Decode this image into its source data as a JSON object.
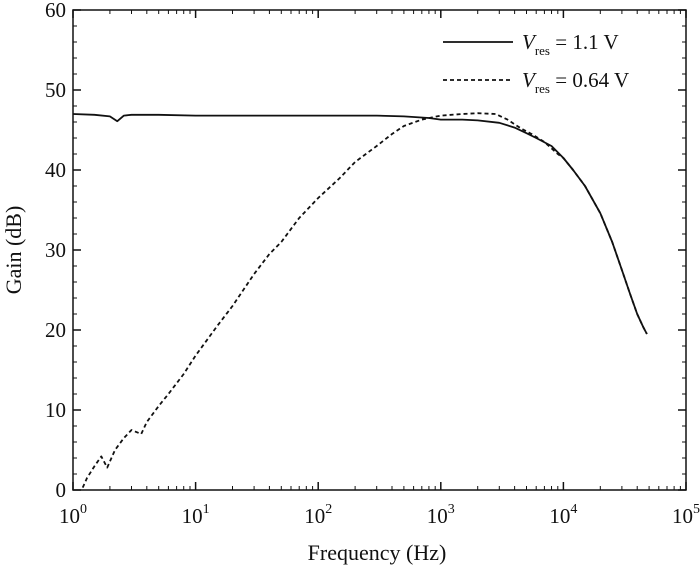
{
  "chart_data": {
    "type": "line",
    "xlabel": "Frequency (Hz)",
    "ylabel": "Gain (dB)",
    "x_scale": "log",
    "xlim": [
      1,
      100000
    ],
    "ylim": [
      0,
      60
    ],
    "grid": false,
    "legend_position": "top-right",
    "x_ticks": [
      {
        "value": 1,
        "base": "10",
        "exp": "0"
      },
      {
        "value": 10,
        "base": "10",
        "exp": "1"
      },
      {
        "value": 100,
        "base": "10",
        "exp": "2"
      },
      {
        "value": 1000,
        "base": "10",
        "exp": "3"
      },
      {
        "value": 10000,
        "base": "10",
        "exp": "4"
      },
      {
        "value": 100000,
        "base": "10",
        "exp": "5"
      }
    ],
    "y_ticks": [
      0,
      10,
      20,
      30,
      40,
      50,
      60
    ],
    "series": [
      {
        "name": "V_res = 1.1 V",
        "legend": {
          "symbol": "V",
          "subscript": "res",
          "value": " = 1.1 V"
        },
        "style": "solid",
        "color": "#111111",
        "points": [
          [
            1,
            47
          ],
          [
            1.5,
            46.9
          ],
          [
            2,
            46.7
          ],
          [
            2.3,
            46.1
          ],
          [
            2.6,
            46.8
          ],
          [
            3,
            46.9
          ],
          [
            5,
            46.9
          ],
          [
            10,
            46.8
          ],
          [
            30,
            46.8
          ],
          [
            100,
            46.8
          ],
          [
            300,
            46.8
          ],
          [
            500,
            46.7
          ],
          [
            800,
            46.5
          ],
          [
            1000,
            46.3
          ],
          [
            1500,
            46.3
          ],
          [
            2000,
            46.2
          ],
          [
            3000,
            45.9
          ],
          [
            4000,
            45.3
          ],
          [
            5000,
            44.6
          ],
          [
            6000,
            44
          ],
          [
            8000,
            43
          ],
          [
            10000,
            41.5
          ],
          [
            12000,
            40
          ],
          [
            15000,
            38
          ],
          [
            20000,
            34.6
          ],
          [
            25000,
            31
          ],
          [
            30000,
            27.5
          ],
          [
            35000,
            24.5
          ],
          [
            40000,
            22
          ],
          [
            45000,
            20.3
          ],
          [
            48000,
            19.5
          ]
        ]
      },
      {
        "name": "V_res = 0.64 V",
        "legend": {
          "symbol": "V",
          "subscript": "res",
          "value": " = 0.64 V"
        },
        "style": "dashed",
        "color": "#111111",
        "points": [
          [
            1.2,
            0.3
          ],
          [
            1.3,
            1.5
          ],
          [
            1.5,
            3
          ],
          [
            1.7,
            4.2
          ],
          [
            1.9,
            2.8
          ],
          [
            2.2,
            5
          ],
          [
            2.6,
            6.5
          ],
          [
            3,
            7.5
          ],
          [
            3.6,
            7
          ],
          [
            4,
            8.5
          ],
          [
            5,
            10.5
          ],
          [
            6,
            12
          ],
          [
            8,
            14.5
          ],
          [
            10,
            16.8
          ],
          [
            15,
            20.5
          ],
          [
            20,
            23
          ],
          [
            30,
            27
          ],
          [
            40,
            29.5
          ],
          [
            50,
            31
          ],
          [
            70,
            34
          ],
          [
            100,
            36.5
          ],
          [
            150,
            39
          ],
          [
            200,
            41
          ],
          [
            300,
            43
          ],
          [
            400,
            44.5
          ],
          [
            500,
            45.5
          ],
          [
            700,
            46.3
          ],
          [
            1000,
            46.8
          ],
          [
            1500,
            47
          ],
          [
            2000,
            47.1
          ],
          [
            2800,
            47
          ],
          [
            3500,
            46.3
          ],
          [
            4500,
            45.2
          ],
          [
            5500,
            44.5
          ],
          [
            7000,
            43.5
          ],
          [
            9000,
            42
          ],
          [
            10000,
            41.5
          ],
          [
            12000,
            40
          ],
          [
            15000,
            38
          ],
          [
            20000,
            34.6
          ],
          [
            25000,
            31
          ],
          [
            30000,
            27.5
          ],
          [
            35000,
            24.5
          ],
          [
            40000,
            22
          ],
          [
            45000,
            20.3
          ],
          [
            48000,
            19.5
          ]
        ]
      }
    ]
  }
}
